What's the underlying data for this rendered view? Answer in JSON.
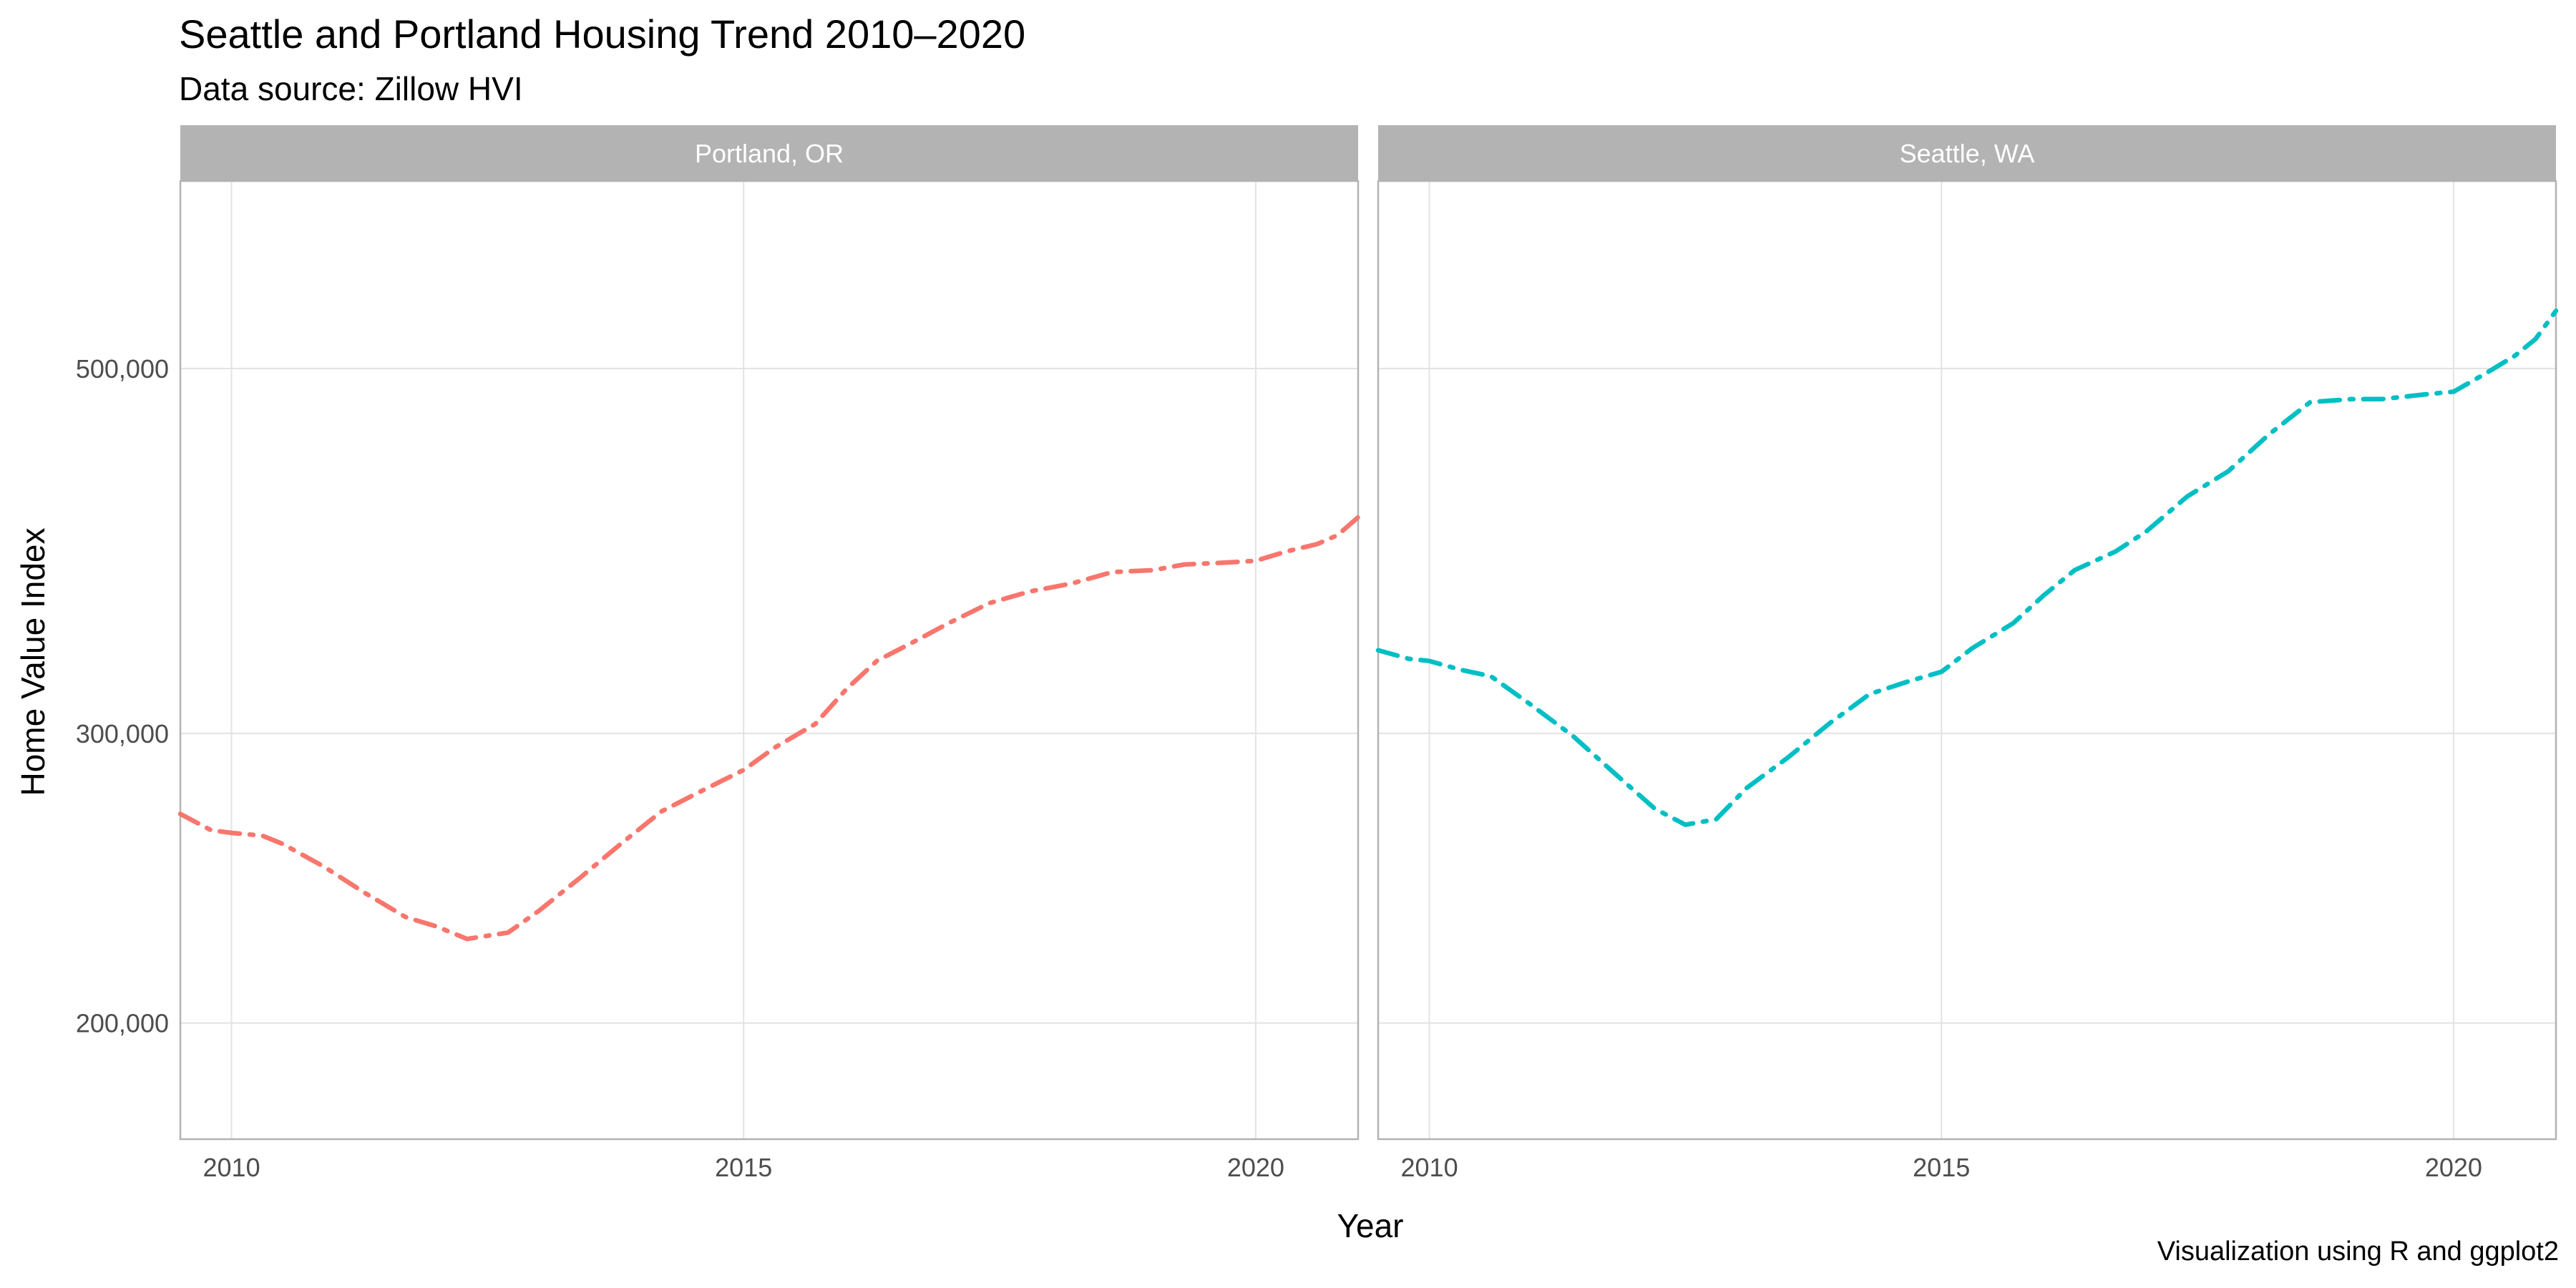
{
  "header": {
    "title": "Seattle and Portland Housing Trend 2010–2020",
    "subtitle": "Data source: Zillow HVI"
  },
  "caption": "Visualization using R and ggplot2",
  "colors": {
    "portland": "#F8766D",
    "seattle": "#00BFC4",
    "strip_bg": "#B3B3B3",
    "grid": "#E3E3E3",
    "panel_border": "#B3B3B3",
    "tick_text": "#4D4D4D"
  },
  "chart_data": {
    "type": "line",
    "title": "Seattle and Portland Housing Trend 2010–2020",
    "subtitle": "Data source: Zillow HVI",
    "xlabel": "Year",
    "ylabel": "Home Value Index",
    "y_scale": "log",
    "xlim": [
      2009.5,
      2021.0
    ],
    "ylim": [
      170000,
      650000
    ],
    "x_ticks": [
      2010,
      2015,
      2020
    ],
    "x_tick_labels": [
      "2010",
      "2015",
      "2020"
    ],
    "y_ticks": [
      200000,
      300000,
      500000
    ],
    "y_tick_labels": [
      "200,000",
      "300,000",
      "500,000"
    ],
    "grid": true,
    "legend": "none",
    "line_style": "dashed-dotted",
    "facets": [
      {
        "strip_label": "Portland, OR",
        "color": "#F8766D",
        "x": [
          2009.5,
          2009.8,
          2010.0,
          2010.3,
          2010.5,
          2010.9,
          2011.3,
          2011.7,
          2012.0,
          2012.3,
          2012.7,
          2013.0,
          2013.4,
          2013.8,
          2014.2,
          2014.6,
          2015.0,
          2015.3,
          2015.7,
          2016.0,
          2016.3,
          2016.7,
          2017.0,
          2017.4,
          2017.8,
          2018.2,
          2018.6,
          2019.0,
          2019.3,
          2019.7,
          2020.0,
          2020.3,
          2020.6,
          2020.8,
          2021.0
        ],
        "y": [
          268000,
          262000,
          261000,
          260000,
          257000,
          249000,
          240000,
          232000,
          229000,
          225000,
          227000,
          234000,
          245000,
          257000,
          269000,
          277000,
          285000,
          294000,
          304000,
          319000,
          332000,
          342000,
          350000,
          360000,
          366000,
          370000,
          376000,
          377000,
          380000,
          381000,
          382000,
          387000,
          391000,
          396000,
          406000
        ]
      },
      {
        "strip_label": "Seattle, WA",
        "color": "#00BFC4",
        "x": [
          2009.5,
          2009.8,
          2010.0,
          2010.3,
          2010.6,
          2011.0,
          2011.4,
          2011.8,
          2012.2,
          2012.5,
          2012.8,
          2013.1,
          2013.5,
          2013.9,
          2014.3,
          2014.7,
          2015.0,
          2015.3,
          2015.7,
          2016.0,
          2016.3,
          2016.7,
          2017.0,
          2017.4,
          2017.8,
          2018.2,
          2018.6,
          2019.0,
          2019.3,
          2019.7,
          2020.0,
          2020.3,
          2020.6,
          2020.8,
          2021.0
        ],
        "y": [
          337000,
          333000,
          332000,
          328000,
          325000,
          312000,
          299000,
          284000,
          270000,
          264000,
          266000,
          278000,
          290000,
          304000,
          317000,
          323000,
          327000,
          338000,
          350000,
          364000,
          377000,
          387000,
          398000,
          418000,
          433000,
          456000,
          477000,
          479000,
          479000,
          482000,
          484000,
          496000,
          509000,
          521000,
          542000
        ]
      }
    ]
  }
}
